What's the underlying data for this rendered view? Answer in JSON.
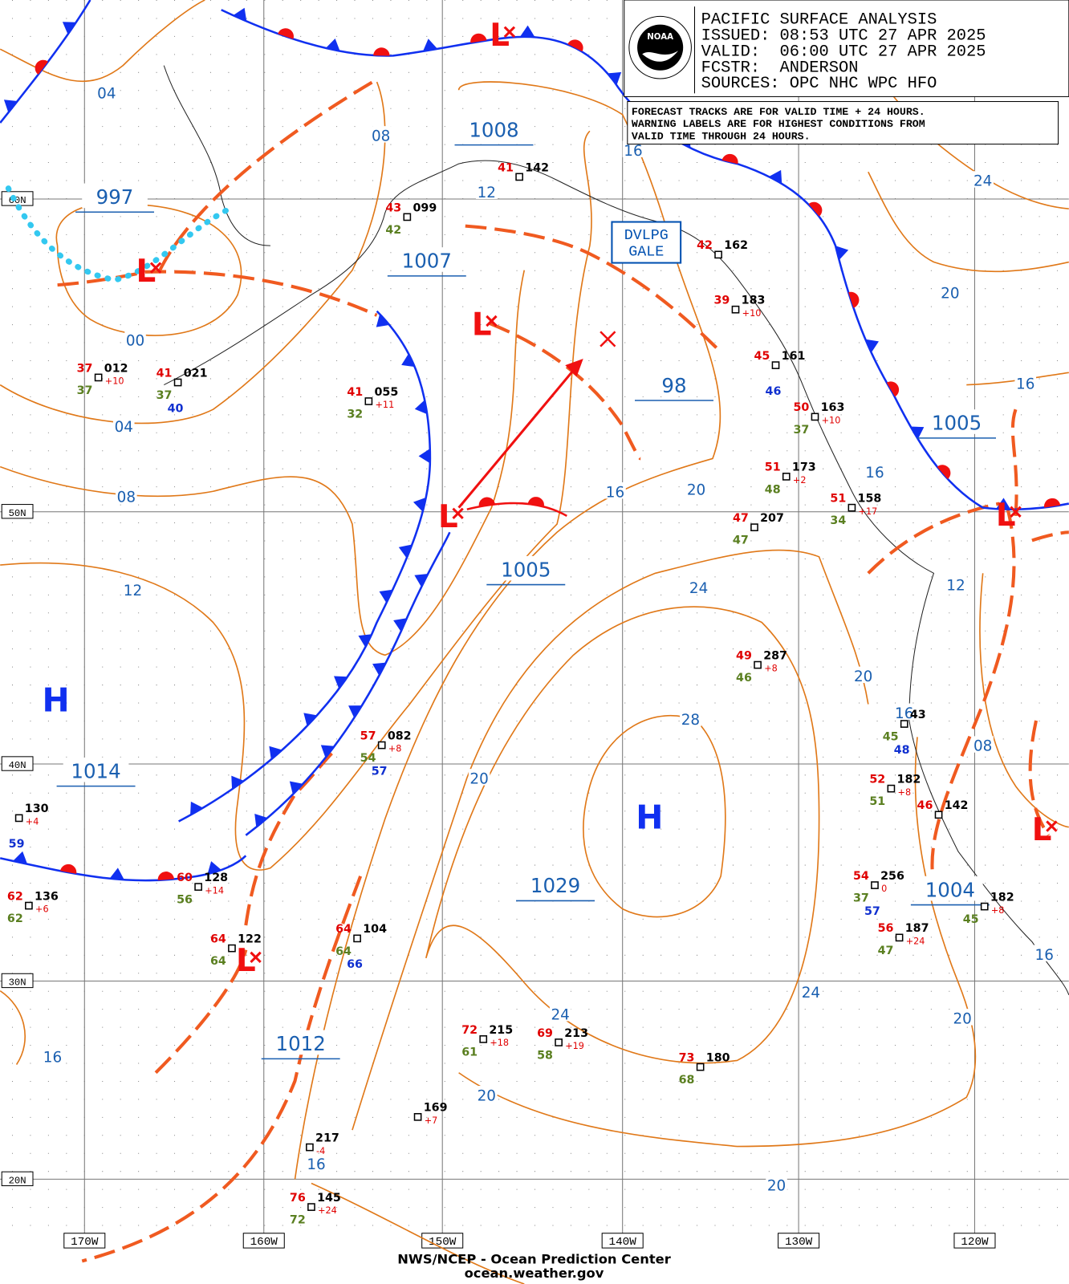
{
  "header": {
    "logo": "NOAA",
    "lines": [
      "PACIFIC SURFACE ANALYSIS",
      "ISSUED: 08:53 UTC 27 APR 2025",
      "VALID:  06:00 UTC 27 APR 2025",
      "FCSTR:  ANDERSON",
      "SOURCES: OPC NHC WPC HFO"
    ]
  },
  "notice": {
    "lines": [
      "FORECAST TRACKS ARE FOR VALID TIME + 24 HOURS.",
      "WARNING LABELS ARE FOR HIGHEST CONDITIONS FROM",
      "VALID TIME THROUGH 24 HOURS."
    ]
  },
  "warning_label": {
    "lines": [
      "DVLPG",
      "GALE"
    ]
  },
  "isobar_labels": [
    "04",
    "08",
    "1008",
    "16",
    "24",
    "997",
    "12",
    "1007",
    "20",
    "00",
    "98",
    "16",
    "1005",
    "04",
    "16",
    "08",
    "16",
    "20",
    "1005",
    "12",
    "24",
    "12",
    "20",
    "16",
    "28",
    "08",
    "1014",
    "20",
    "1029",
    "1004",
    "16",
    "24",
    "24",
    "20",
    "1012",
    "16",
    "20",
    "16",
    "20"
  ],
  "highs": [
    "H",
    "H"
  ],
  "lows": [
    "L",
    "L",
    "L",
    "L",
    "L",
    "L",
    "L"
  ],
  "latitude_labels": [
    "60N",
    "50N",
    "40N",
    "30N",
    "20N"
  ],
  "longitude_labels": [
    "170W",
    "160W",
    "150W",
    "140W",
    "130W",
    "120W"
  ],
  "stations": [
    {
      "id": "012",
      "temp": "37",
      "dew": "37",
      "tend": "+10"
    },
    {
      "id": "021",
      "temp": "41",
      "dew": "37",
      "extra": "40"
    },
    {
      "id": "055",
      "temp": "41",
      "dew": "32",
      "tend": "+11"
    },
    {
      "id": "099",
      "temp": "43",
      "dew": "42"
    },
    {
      "id": "142",
      "temp": "41"
    },
    {
      "id": "162",
      "temp": "42"
    },
    {
      "id": "183",
      "temp": "39",
      "tend": "+10"
    },
    {
      "id": "161",
      "temp": "45",
      "extra": "46"
    },
    {
      "id": "163",
      "temp": "50",
      "dew": "37",
      "tend": "+10"
    },
    {
      "id": "173",
      "temp": "51",
      "dew": "48",
      "tend": "+2"
    },
    {
      "id": "158",
      "temp": "51",
      "dew": "34",
      "tend": "+17"
    },
    {
      "id": "207",
      "temp": "47",
      "dew": "47"
    },
    {
      "id": "287",
      "temp": "49",
      "dew": "46",
      "tend": "+8"
    },
    {
      "id": "43",
      "dew": "45",
      "extra": "48"
    },
    {
      "id": "082",
      "temp": "57",
      "dew": "54",
      "tend": "+8",
      "extra": "57"
    },
    {
      "id": "182",
      "temp": "52",
      "dew": "51",
      "tend": "+8"
    },
    {
      "id": "142",
      "temp": "46"
    },
    {
      "id": "130",
      "tend": "+4",
      "extra": "59"
    },
    {
      "id": "256",
      "temp": "54",
      "dew": "37",
      "tend": "0",
      "extra": "57"
    },
    {
      "id": "128",
      "temp": "60",
      "dew": "56",
      "tend": "+14"
    },
    {
      "id": "136",
      "temp": "62",
      "dew": "62",
      "tend": "+6"
    },
    {
      "id": "187",
      "temp": "56",
      "dew": "47",
      "tend": "+24"
    },
    {
      "id": "182",
      "dew": "45",
      "tend": "+8"
    },
    {
      "id": "104",
      "temp": "64",
      "dew": "64",
      "extra": "66"
    },
    {
      "id": "122",
      "temp": "64",
      "dew": "64"
    },
    {
      "id": "215",
      "temp": "72",
      "dew": "61",
      "tend": "+18"
    },
    {
      "id": "213",
      "temp": "69",
      "dew": "58",
      "tend": "+19"
    },
    {
      "id": "180",
      "temp": "73",
      "dew": "68"
    },
    {
      "id": "169",
      "tend": "+7"
    },
    {
      "id": "217",
      "tend": "-4"
    },
    {
      "id": "145",
      "temp": "76",
      "dew": "72",
      "tend": "+24"
    }
  ],
  "footer": {
    "lines": [
      "NWS/NCEP - Ocean Prediction Center",
      "ocean.weather.gov"
    ]
  }
}
